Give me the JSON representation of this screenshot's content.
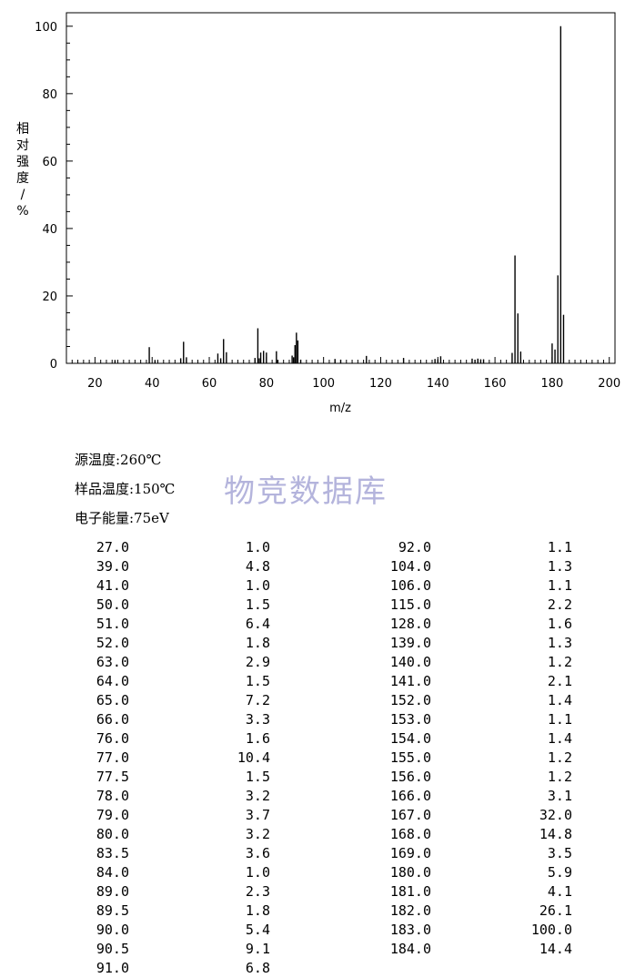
{
  "chart_data": {
    "type": "bar",
    "xlabel": "m/z",
    "ylabel": "相对强度/%",
    "xlim": [
      10,
      202
    ],
    "ylim": [
      0,
      104
    ],
    "x_ticks": [
      20,
      40,
      60,
      80,
      100,
      120,
      140,
      160,
      180,
      200
    ],
    "y_ticks": [
      0,
      20,
      40,
      60,
      80,
      100
    ],
    "grid": false,
    "peaks": [
      {
        "mz": 27.0,
        "abundance": 1.0
      },
      {
        "mz": 39.0,
        "abundance": 4.8
      },
      {
        "mz": 41.0,
        "abundance": 1.0
      },
      {
        "mz": 50.0,
        "abundance": 1.5
      },
      {
        "mz": 51.0,
        "abundance": 6.4
      },
      {
        "mz": 52.0,
        "abundance": 1.8
      },
      {
        "mz": 63.0,
        "abundance": 2.9
      },
      {
        "mz": 64.0,
        "abundance": 1.5
      },
      {
        "mz": 65.0,
        "abundance": 7.2
      },
      {
        "mz": 66.0,
        "abundance": 3.3
      },
      {
        "mz": 76.0,
        "abundance": 1.6
      },
      {
        "mz": 77.0,
        "abundance": 10.4
      },
      {
        "mz": 77.5,
        "abundance": 1.5
      },
      {
        "mz": 78.0,
        "abundance": 3.2
      },
      {
        "mz": 79.0,
        "abundance": 3.7
      },
      {
        "mz": 80.0,
        "abundance": 3.2
      },
      {
        "mz": 83.5,
        "abundance": 3.6
      },
      {
        "mz": 84.0,
        "abundance": 1.0
      },
      {
        "mz": 89.0,
        "abundance": 2.3
      },
      {
        "mz": 89.5,
        "abundance": 1.8
      },
      {
        "mz": 90.0,
        "abundance": 5.4
      },
      {
        "mz": 90.5,
        "abundance": 9.1
      },
      {
        "mz": 91.0,
        "abundance": 6.8
      },
      {
        "mz": 92.0,
        "abundance": 1.1
      },
      {
        "mz": 104.0,
        "abundance": 1.3
      },
      {
        "mz": 106.0,
        "abundance": 1.1
      },
      {
        "mz": 115.0,
        "abundance": 2.2
      },
      {
        "mz": 128.0,
        "abundance": 1.6
      },
      {
        "mz": 139.0,
        "abundance": 1.3
      },
      {
        "mz": 140.0,
        "abundance": 1.2
      },
      {
        "mz": 141.0,
        "abundance": 2.1
      },
      {
        "mz": 152.0,
        "abundance": 1.4
      },
      {
        "mz": 153.0,
        "abundance": 1.1
      },
      {
        "mz": 154.0,
        "abundance": 1.4
      },
      {
        "mz": 155.0,
        "abundance": 1.2
      },
      {
        "mz": 156.0,
        "abundance": 1.2
      },
      {
        "mz": 166.0,
        "abundance": 3.1
      },
      {
        "mz": 167.0,
        "abundance": 32.0
      },
      {
        "mz": 168.0,
        "abundance": 14.8
      },
      {
        "mz": 169.0,
        "abundance": 3.5
      },
      {
        "mz": 180.0,
        "abundance": 5.9
      },
      {
        "mz": 181.0,
        "abundance": 4.1
      },
      {
        "mz": 182.0,
        "abundance": 26.1
      },
      {
        "mz": 183.0,
        "abundance": 100.0
      },
      {
        "mz": 184.0,
        "abundance": 14.4
      }
    ]
  },
  "conditions": {
    "source_temp": "源温度:260℃",
    "sample_temp": "样品温度:150℃",
    "electron_energy": "电子能量:75eV"
  },
  "watermark": "物竞数据库",
  "table": {
    "left": [
      [
        "27.0",
        "1.0"
      ],
      [
        "39.0",
        "4.8"
      ],
      [
        "41.0",
        "1.0"
      ],
      [
        "50.0",
        "1.5"
      ],
      [
        "51.0",
        "6.4"
      ],
      [
        "52.0",
        "1.8"
      ],
      [
        "63.0",
        "2.9"
      ],
      [
        "64.0",
        "1.5"
      ],
      [
        "65.0",
        "7.2"
      ],
      [
        "66.0",
        "3.3"
      ],
      [
        "76.0",
        "1.6"
      ],
      [
        "77.0",
        "10.4"
      ],
      [
        "77.5",
        "1.5"
      ],
      [
        "78.0",
        "3.2"
      ],
      [
        "79.0",
        "3.7"
      ],
      [
        "80.0",
        "3.2"
      ],
      [
        "83.5",
        "3.6"
      ],
      [
        "84.0",
        "1.0"
      ],
      [
        "89.0",
        "2.3"
      ],
      [
        "89.5",
        "1.8"
      ],
      [
        "90.0",
        "5.4"
      ],
      [
        "90.5",
        "9.1"
      ],
      [
        "91.0",
        "6.8"
      ]
    ],
    "right": [
      [
        "92.0",
        "1.1"
      ],
      [
        "104.0",
        "1.3"
      ],
      [
        "106.0",
        "1.1"
      ],
      [
        "115.0",
        "2.2"
      ],
      [
        "128.0",
        "1.6"
      ],
      [
        "139.0",
        "1.3"
      ],
      [
        "140.0",
        "1.2"
      ],
      [
        "141.0",
        "2.1"
      ],
      [
        "152.0",
        "1.4"
      ],
      [
        "153.0",
        "1.1"
      ],
      [
        "154.0",
        "1.4"
      ],
      [
        "155.0",
        "1.2"
      ],
      [
        "156.0",
        "1.2"
      ],
      [
        "166.0",
        "3.1"
      ],
      [
        "167.0",
        "32.0"
      ],
      [
        "168.0",
        "14.8"
      ],
      [
        "169.0",
        "3.5"
      ],
      [
        "180.0",
        "5.9"
      ],
      [
        "181.0",
        "4.1"
      ],
      [
        "182.0",
        "26.1"
      ],
      [
        "183.0",
        "100.0"
      ],
      [
        "184.0",
        "14.4"
      ]
    ]
  }
}
